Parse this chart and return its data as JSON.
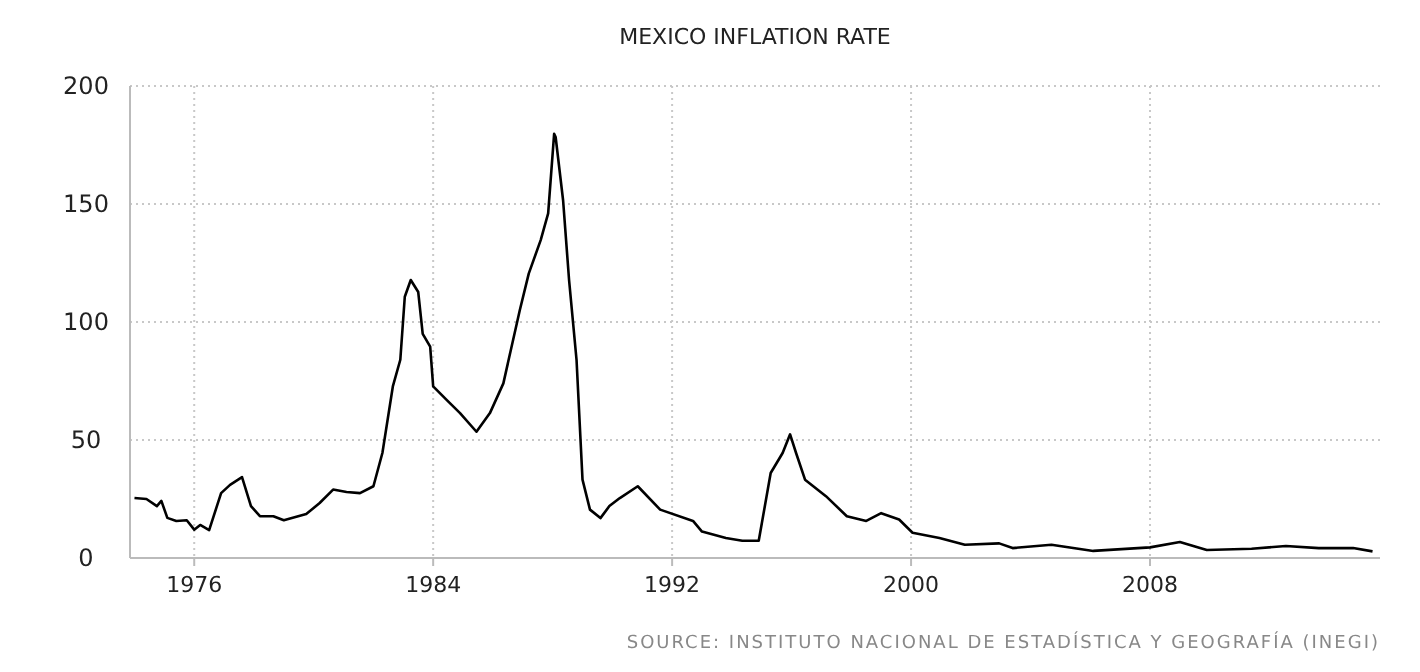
{
  "chart_data": {
    "type": "line",
    "title": "MEXICO INFLATION RATE",
    "annotations": [
      "SOURCE: INSTITUTO NACIONAL DE ESTADÍSTICA Y GEOGRAFÍA (INEGI)"
    ],
    "xlim": [
      1973.85,
      2015.7
    ],
    "xticks": [
      1976,
      1984,
      1992,
      2000,
      2008
    ],
    "ylim": [
      0,
      200
    ],
    "yticks": [
      0,
      50,
      100,
      150,
      200
    ],
    "grid": true,
    "marker": "none",
    "line_style": "solid",
    "series": [
      {
        "color": "#000000",
        "x": [
          1974.0,
          1974.4,
          1974.75,
          1974.9,
          1975.1,
          1975.4,
          1975.75,
          1976.0,
          1976.2,
          1976.5,
          1976.9,
          1977.2,
          1977.6,
          1977.9,
          1978.2,
          1978.65,
          1979.0,
          1979.75,
          1980.2,
          1980.65,
          1981.1,
          1981.55,
          1982.0,
          1982.3,
          1982.65,
          1982.9,
          1983.05,
          1983.25,
          1983.5,
          1983.65,
          1983.9,
          1984.0,
          1984.45,
          1984.9,
          1985.45,
          1985.9,
          1986.35,
          1986.9,
          1987.2,
          1987.6,
          1987.85,
          1988.05,
          1988.1,
          1988.35,
          1988.55,
          1988.8,
          1989.0,
          1989.25,
          1989.6,
          1989.9,
          1990.25,
          1990.85,
          1991.6,
          1992.7,
          1993.0,
          1993.8,
          1994.35,
          1994.9,
          1995.3,
          1995.7,
          1995.95,
          1996.15,
          1996.45,
          1997.15,
          1997.85,
          1998.5,
          1999.0,
          1999.6,
          2000.05,
          2000.95,
          2001.8,
          2002.95,
          2003.4,
          2004.7,
          2006.1,
          2008.0,
          2009.0,
          2009.9,
          2011.4,
          2012.55,
          2013.65,
          2014.8,
          2015.45
        ],
        "values": [
          25.4,
          25,
          22,
          24.2,
          17,
          15.7,
          16,
          12,
          14,
          11.8,
          27.5,
          31,
          34.3,
          22,
          17.7,
          17.7,
          16,
          18.6,
          23.3,
          29,
          28,
          27.5,
          30.4,
          44.5,
          72.7,
          84,
          110.7,
          117.8,
          112.7,
          95,
          89.6,
          72.7,
          67,
          61.4,
          53.5,
          61.4,
          74,
          105,
          120.5,
          134.7,
          146,
          179.7,
          178.4,
          151.6,
          117.8,
          84,
          33.2,
          20.5,
          16.9,
          22,
          25.4,
          30.4,
          20.5,
          15.7,
          11.2,
          8.5,
          7.3,
          7.3,
          36,
          44.5,
          52.4,
          44.5,
          33.2,
          26.2,
          17.7,
          15.7,
          19,
          16.3,
          10.7,
          8.5,
          5.6,
          6.2,
          4.2,
          5.6,
          3.0,
          4.5,
          6.8,
          3.4,
          3.9,
          5.1,
          4.2,
          4.2,
          2.8
        ]
      }
    ]
  }
}
